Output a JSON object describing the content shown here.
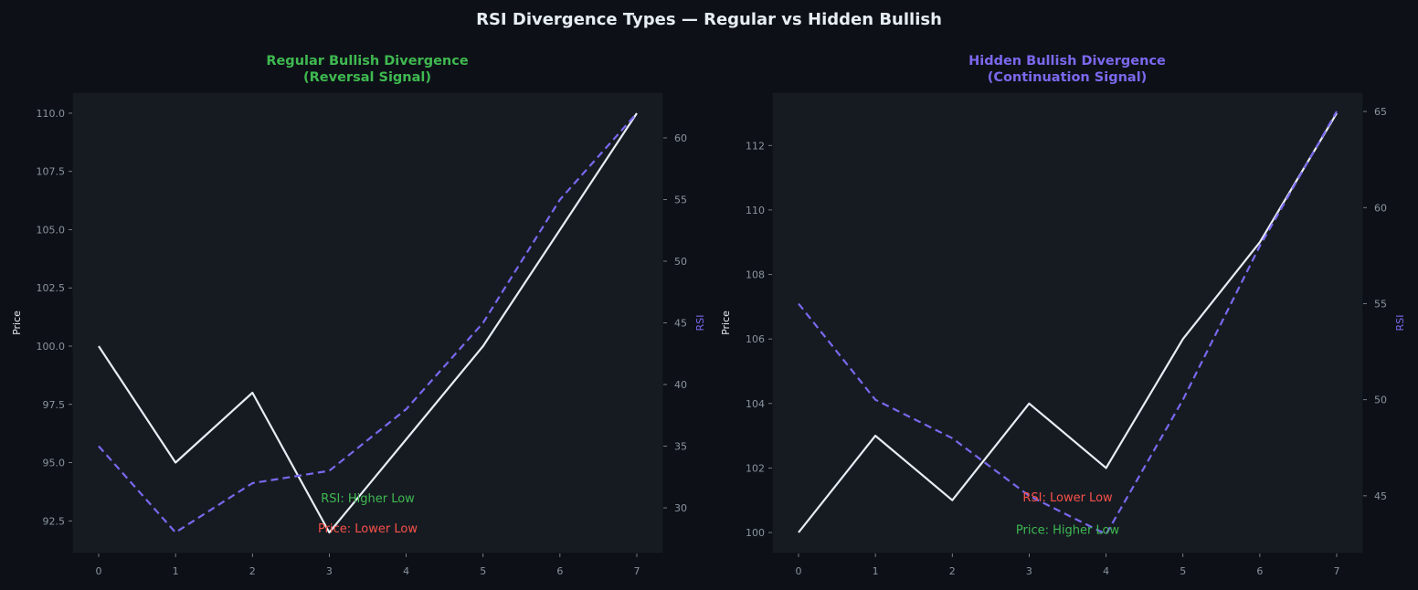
{
  "title": "RSI Divergence Types — Regular vs Hidden Bullish",
  "colors": {
    "background": "#0d1117",
    "panel": "#161b22",
    "price_line": "#e6edf3",
    "rsi_line": "#7b68ee",
    "bullish": "#3fb950",
    "bearish": "#f85149",
    "tick_text": "#8b949e"
  },
  "chart_data": [
    {
      "type": "line",
      "title_lines": [
        "Regular Bullish Divergence",
        "(Reversal Signal)"
      ],
      "title_color": "#3fb950",
      "xlabel": "",
      "ylabel": "Price",
      "y2label": "RSI",
      "x": [
        0,
        1,
        2,
        3,
        4,
        5,
        6,
        7
      ],
      "xticks": [
        0,
        1,
        2,
        3,
        4,
        5,
        6,
        7
      ],
      "ylim": [
        91.1,
        110.9
      ],
      "yticks": [
        92.5,
        95.0,
        97.5,
        100.0,
        102.5,
        105.0,
        107.5,
        110.0
      ],
      "yticklabels": [
        "92.5",
        "95.0",
        "97.5",
        "100.0",
        "102.5",
        "105.0",
        "107.5",
        "110.0"
      ],
      "y2lim": [
        26.3,
        63.7
      ],
      "y2ticks": [
        30,
        35,
        40,
        45,
        50,
        55,
        60
      ],
      "y2ticklabels": [
        "30",
        "35",
        "40",
        "45",
        "50",
        "55",
        "60"
      ],
      "series": [
        {
          "axis": "left",
          "style": "solid",
          "color": "#e6edf3",
          "values": [
            100,
            95,
            98,
            92,
            96,
            100,
            105,
            110
          ]
        },
        {
          "axis": "right",
          "style": "dashed",
          "color": "#7b68ee",
          "values": [
            35,
            28,
            32,
            33,
            38,
            45,
            55,
            62
          ]
        }
      ],
      "annotations": [
        {
          "text": "RSI: Higher Low",
          "color": "#3fb950",
          "x": 3.5,
          "y": 93.5
        },
        {
          "text": "Price: Lower Low",
          "color": "#f85149",
          "x": 3.5,
          "y": 92.2
        }
      ],
      "grid": false
    },
    {
      "type": "line",
      "title_lines": [
        "Hidden Bullish Divergence",
        "(Continuation Signal)"
      ],
      "title_color": "#7b68ee",
      "xlabel": "",
      "ylabel": "Price",
      "y2label": "RSI",
      "x": [
        0,
        1,
        2,
        3,
        4,
        5,
        6,
        7
      ],
      "xticks": [
        0,
        1,
        2,
        3,
        4,
        5,
        6,
        7
      ],
      "ylim": [
        99.35,
        113.65
      ],
      "yticks": [
        100,
        102,
        104,
        106,
        108,
        110,
        112
      ],
      "yticklabels": [
        "100",
        "102",
        "104",
        "106",
        "108",
        "110",
        "112"
      ],
      "y2lim": [
        42.0,
        66.0
      ],
      "y2ticks": [
        45,
        50,
        55,
        60,
        65
      ],
      "y2ticklabels": [
        "45",
        "50",
        "55",
        "60",
        "65"
      ],
      "series": [
        {
          "axis": "left",
          "style": "solid",
          "color": "#e6edf3",
          "values": [
            100,
            103,
            101,
            104,
            102,
            106,
            109,
            113
          ]
        },
        {
          "axis": "right",
          "style": "dashed",
          "color": "#7b68ee",
          "values": [
            55,
            50,
            48,
            45,
            43,
            50,
            58,
            65
          ]
        }
      ],
      "annotations": [
        {
          "text": "RSI: Lower Low",
          "color": "#f85149",
          "x": 3.5,
          "y": 101.1
        },
        {
          "text": "Price: Higher Low",
          "color": "#3fb950",
          "x": 3.5,
          "y": 100.1
        }
      ],
      "grid": false
    }
  ]
}
